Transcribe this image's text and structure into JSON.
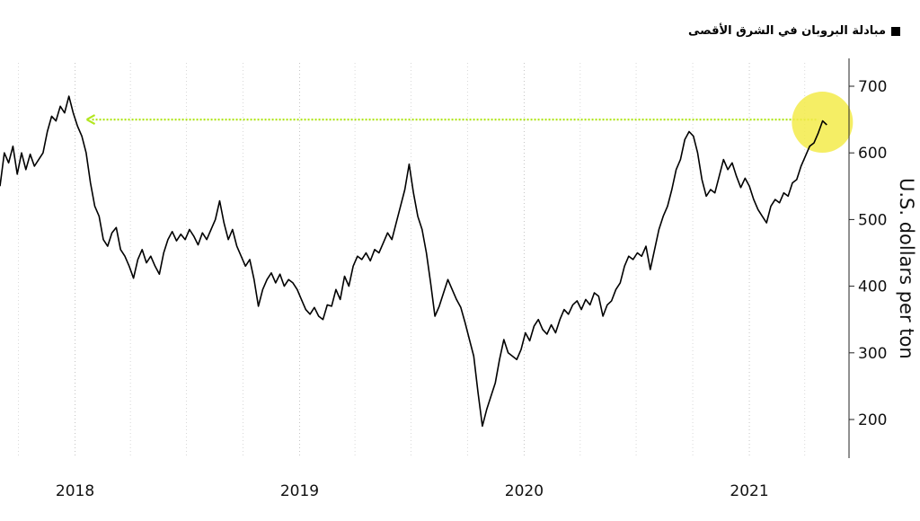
{
  "chart_data": {
    "type": "line",
    "title": "",
    "xlabel": "",
    "ylabel": "U.S. dollars per ton",
    "ylim": [
      140,
      740
    ],
    "y_ticks": [
      200,
      300,
      400,
      500,
      600,
      700
    ],
    "x_ticks": [
      "2018",
      "2019",
      "2020",
      "2021"
    ],
    "grid": "vertical dotted",
    "legend": "top-right",
    "series": [
      {
        "name": "مبادلة البروبان في الشرق الأقصى",
        "color": "#000000",
        "points": [
          [
            "2017-09-01",
            550
          ],
          [
            "2017-09-08",
            600
          ],
          [
            "2017-09-15",
            585
          ],
          [
            "2017-09-22",
            610
          ],
          [
            "2017-09-29",
            568
          ],
          [
            "2017-10-06",
            600
          ],
          [
            "2017-10-13",
            575
          ],
          [
            "2017-10-20",
            598
          ],
          [
            "2017-10-27",
            580
          ],
          [
            "2017-11-03",
            590
          ],
          [
            "2017-11-10",
            600
          ],
          [
            "2017-11-17",
            632
          ],
          [
            "2017-11-24",
            655
          ],
          [
            "2017-12-01",
            648
          ],
          [
            "2017-12-08",
            670
          ],
          [
            "2017-12-15",
            660
          ],
          [
            "2017-12-22",
            685
          ],
          [
            "2017-12-29",
            660
          ],
          [
            "2018-01-05",
            640
          ],
          [
            "2018-01-12",
            625
          ],
          [
            "2018-01-19",
            600
          ],
          [
            "2018-01-26",
            555
          ],
          [
            "2018-02-02",
            520
          ],
          [
            "2018-02-09",
            505
          ],
          [
            "2018-02-16",
            470
          ],
          [
            "2018-02-23",
            460
          ],
          [
            "2018-03-02",
            480
          ],
          [
            "2018-03-09",
            488
          ],
          [
            "2018-03-16",
            455
          ],
          [
            "2018-03-23",
            445
          ],
          [
            "2018-03-30",
            430
          ],
          [
            "2018-04-06",
            412
          ],
          [
            "2018-04-13",
            440
          ],
          [
            "2018-04-20",
            455
          ],
          [
            "2018-04-27",
            435
          ],
          [
            "2018-05-04",
            445
          ],
          [
            "2018-05-11",
            430
          ],
          [
            "2018-05-18",
            418
          ],
          [
            "2018-05-25",
            450
          ],
          [
            "2018-06-01",
            470
          ],
          [
            "2018-06-08",
            482
          ],
          [
            "2018-06-15",
            468
          ],
          [
            "2018-06-22",
            478
          ],
          [
            "2018-06-29",
            470
          ],
          [
            "2018-07-06",
            485
          ],
          [
            "2018-07-13",
            475
          ],
          [
            "2018-07-20",
            462
          ],
          [
            "2018-07-27",
            480
          ],
          [
            "2018-08-03",
            470
          ],
          [
            "2018-08-10",
            485
          ],
          [
            "2018-08-17",
            500
          ],
          [
            "2018-08-24",
            528
          ],
          [
            "2018-08-31",
            495
          ],
          [
            "2018-09-07",
            470
          ],
          [
            "2018-09-14",
            485
          ],
          [
            "2018-09-21",
            460
          ],
          [
            "2018-09-28",
            445
          ],
          [
            "2018-10-05",
            430
          ],
          [
            "2018-10-12",
            440
          ],
          [
            "2018-10-19",
            410
          ],
          [
            "2018-10-26",
            370
          ],
          [
            "2018-11-02",
            395
          ],
          [
            "2018-11-09",
            410
          ],
          [
            "2018-11-16",
            420
          ],
          [
            "2018-11-23",
            405
          ],
          [
            "2018-11-30",
            418
          ],
          [
            "2018-12-07",
            400
          ],
          [
            "2018-12-14",
            410
          ],
          [
            "2018-12-21",
            405
          ],
          [
            "2018-12-28",
            395
          ],
          [
            "2019-01-04",
            380
          ],
          [
            "2019-01-11",
            365
          ],
          [
            "2019-01-18",
            358
          ],
          [
            "2019-01-25",
            368
          ],
          [
            "2019-02-01",
            355
          ],
          [
            "2019-02-08",
            350
          ],
          [
            "2019-02-15",
            372
          ],
          [
            "2019-02-22",
            370
          ],
          [
            "2019-03-01",
            395
          ],
          [
            "2019-03-08",
            380
          ],
          [
            "2019-03-15",
            415
          ],
          [
            "2019-03-22",
            400
          ],
          [
            "2019-03-29",
            430
          ],
          [
            "2019-04-05",
            445
          ],
          [
            "2019-04-12",
            440
          ],
          [
            "2019-04-19",
            450
          ],
          [
            "2019-04-26",
            438
          ],
          [
            "2019-05-03",
            455
          ],
          [
            "2019-05-10",
            450
          ],
          [
            "2019-05-17",
            465
          ],
          [
            "2019-05-24",
            480
          ],
          [
            "2019-05-31",
            470
          ],
          [
            "2019-06-07",
            495
          ],
          [
            "2019-06-14",
            520
          ],
          [
            "2019-06-21",
            545
          ],
          [
            "2019-06-28",
            583
          ],
          [
            "2019-07-05",
            540
          ],
          [
            "2019-07-12",
            505
          ],
          [
            "2019-07-19",
            485
          ],
          [
            "2019-07-26",
            450
          ],
          [
            "2019-08-02",
            405
          ],
          [
            "2019-08-09",
            355
          ],
          [
            "2019-08-16",
            370
          ],
          [
            "2019-08-23",
            390
          ],
          [
            "2019-08-30",
            410
          ],
          [
            "2019-09-06",
            395
          ],
          [
            "2019-09-13",
            380
          ],
          [
            "2019-09-20",
            368
          ],
          [
            "2019-09-27",
            345
          ],
          [
            "2019-10-04",
            320
          ],
          [
            "2019-10-11",
            295
          ],
          [
            "2019-10-18",
            240
          ],
          [
            "2019-10-25",
            190
          ],
          [
            "2019-11-01",
            215
          ],
          [
            "2019-11-08",
            235
          ],
          [
            "2019-11-15",
            255
          ],
          [
            "2019-11-22",
            290
          ],
          [
            "2019-11-29",
            320
          ],
          [
            "2019-12-06",
            300
          ],
          [
            "2019-12-13",
            295
          ],
          [
            "2019-12-20",
            290
          ],
          [
            "2019-12-27",
            305
          ],
          [
            "2020-01-03",
            330
          ],
          [
            "2020-01-10",
            318
          ],
          [
            "2020-01-17",
            340
          ],
          [
            "2020-01-24",
            350
          ],
          [
            "2020-01-31",
            335
          ],
          [
            "2020-02-07",
            328
          ],
          [
            "2020-02-14",
            342
          ],
          [
            "2020-02-21",
            330
          ],
          [
            "2020-02-28",
            350
          ],
          [
            "2020-03-06",
            365
          ],
          [
            "2020-03-13",
            358
          ],
          [
            "2020-03-20",
            372
          ],
          [
            "2020-03-27",
            378
          ],
          [
            "2020-04-03",
            365
          ],
          [
            "2020-04-10",
            380
          ],
          [
            "2020-04-17",
            372
          ],
          [
            "2020-04-24",
            390
          ],
          [
            "2020-05-01",
            385
          ],
          [
            "2020-05-08",
            355
          ],
          [
            "2020-05-15",
            372
          ],
          [
            "2020-05-22",
            378
          ],
          [
            "2020-05-29",
            395
          ],
          [
            "2020-06-05",
            405
          ],
          [
            "2020-06-12",
            430
          ],
          [
            "2020-06-19",
            445
          ],
          [
            "2020-06-26",
            440
          ],
          [
            "2020-07-03",
            450
          ],
          [
            "2020-07-10",
            445
          ],
          [
            "2020-07-17",
            460
          ],
          [
            "2020-07-24",
            425
          ],
          [
            "2020-07-31",
            455
          ],
          [
            "2020-08-07",
            485
          ],
          [
            "2020-08-14",
            505
          ],
          [
            "2020-08-21",
            520
          ],
          [
            "2020-08-28",
            545
          ],
          [
            "2020-09-04",
            575
          ],
          [
            "2020-09-11",
            590
          ],
          [
            "2020-09-18",
            620
          ],
          [
            "2020-09-25",
            632
          ],
          [
            "2020-10-02",
            625
          ],
          [
            "2020-10-09",
            600
          ],
          [
            "2020-10-16",
            560
          ],
          [
            "2020-10-23",
            535
          ],
          [
            "2020-10-30",
            545
          ],
          [
            "2020-11-06",
            540
          ],
          [
            "2020-11-13",
            565
          ],
          [
            "2020-11-20",
            590
          ],
          [
            "2020-11-27",
            575
          ],
          [
            "2020-12-04",
            585
          ],
          [
            "2020-12-11",
            565
          ],
          [
            "2020-12-18",
            548
          ],
          [
            "2020-12-25",
            562
          ],
          [
            "2021-01-01",
            550
          ],
          [
            "2021-01-08",
            530
          ],
          [
            "2021-01-15",
            515
          ],
          [
            "2021-01-22",
            505
          ],
          [
            "2021-01-29",
            495
          ],
          [
            "2021-02-05",
            520
          ],
          [
            "2021-02-12",
            530
          ],
          [
            "2021-02-19",
            525
          ],
          [
            "2021-02-26",
            540
          ],
          [
            "2021-03-05",
            535
          ],
          [
            "2021-03-12",
            555
          ],
          [
            "2021-03-19",
            560
          ],
          [
            "2021-03-26",
            580
          ],
          [
            "2021-04-02",
            595
          ],
          [
            "2021-04-09",
            610
          ],
          [
            "2021-04-16",
            615
          ],
          [
            "2021-04-23",
            630
          ],
          [
            "2021-04-30",
            648
          ],
          [
            "2021-05-07",
            642
          ]
        ]
      }
    ],
    "annotations": {
      "reference_value": 650,
      "reference_from": "2018-01-20",
      "reference_to": "2021-04-23",
      "reference_color": "#b2e61e",
      "highlight_point": [
        "2021-05-07",
        642
      ],
      "highlight_color": "#f3eb4a"
    }
  }
}
